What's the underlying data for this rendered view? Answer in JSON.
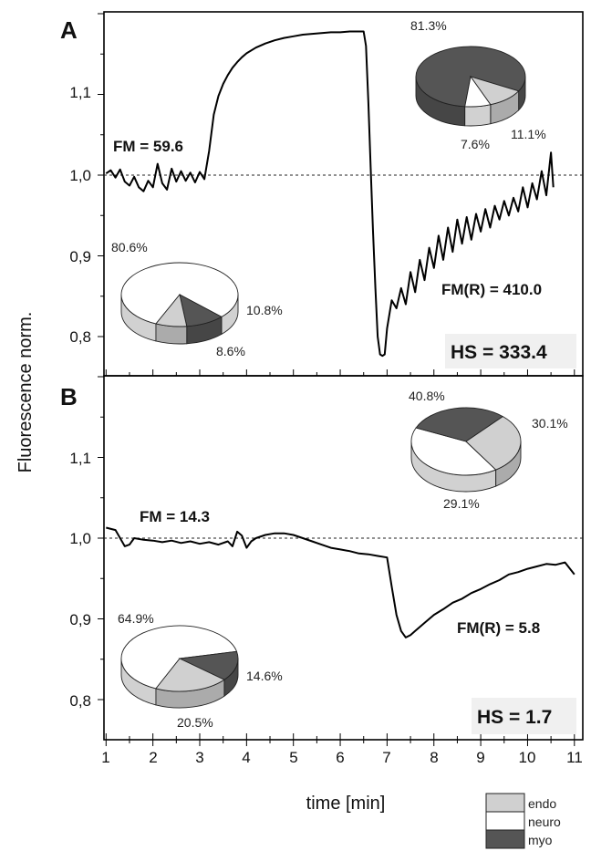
{
  "axes": {
    "ylabel": "Fluorescence norm.",
    "xlabel": "time [min]",
    "x_ticks": [
      "1",
      "2",
      "3",
      "4",
      "5",
      "6",
      "7",
      "8",
      "9",
      "10",
      "11"
    ],
    "y_ticks": [
      "0,8",
      "0,9",
      "1,0",
      "1,1"
    ]
  },
  "legend": {
    "items": [
      {
        "label": "endo",
        "color": "#d0d0d0"
      },
      {
        "label": "neuro",
        "color": "#ffffff"
      },
      {
        "label": "myo",
        "color": "#555555"
      }
    ]
  },
  "panels": [
    {
      "label": "A",
      "fm_label": "FM = 59.6",
      "fmr_label": "FM(R) = 410.0",
      "hs_label": "HS = 333.4",
      "pies": [
        {
          "slices": [
            {
              "name": "myo",
              "value": 81.3,
              "label": "81.3%"
            },
            {
              "name": "endo",
              "value": 11.1,
              "label": "11.1%"
            },
            {
              "name": "neuro",
              "value": 7.6,
              "label": "7.6%"
            }
          ]
        },
        {
          "slices": [
            {
              "name": "neuro",
              "value": 80.6,
              "label": "80.6%"
            },
            {
              "name": "myo",
              "value": 10.8,
              "label": "10.8%"
            },
            {
              "name": "endo",
              "value": 8.6,
              "label": "8.6%"
            }
          ]
        }
      ]
    },
    {
      "label": "B",
      "fm_label": "FM = 14.3",
      "fmr_label": "FM(R) = 5.8",
      "hs_label": "HS = 1.7",
      "pies": [
        {
          "slices": [
            {
              "name": "neuro",
              "value": 40.8,
              "label": "40.8%"
            },
            {
              "name": "myo",
              "value": 30.1,
              "label": "30.1%"
            },
            {
              "name": "endo",
              "value": 29.1,
              "label": "29.1%"
            }
          ]
        },
        {
          "slices": [
            {
              "name": "neuro",
              "value": 64.9,
              "label": "64.9%"
            },
            {
              "name": "myo",
              "value": 14.6,
              "label": "14.6%"
            },
            {
              "name": "endo",
              "value": 20.5,
              "label": "20.5%"
            }
          ]
        }
      ]
    }
  ],
  "chart_data": [
    {
      "type": "line",
      "panel": "A",
      "xlabel": "time [min]",
      "ylabel": "Fluorescence norm.",
      "xlim": [
        1,
        11
      ],
      "ylim": [
        0.75,
        1.2
      ],
      "reference_line": 1.0,
      "series": [
        {
          "x": [
            1.0,
            1.1,
            1.2,
            1.3,
            1.4,
            1.5,
            1.6,
            1.7,
            1.8,
            1.9,
            2.0,
            2.1,
            2.2,
            2.3,
            2.4,
            2.5,
            2.6,
            2.7,
            2.8,
            2.9,
            3.0,
            3.1,
            3.2,
            3.3,
            3.4,
            3.5,
            3.6,
            3.7,
            3.8,
            3.9,
            4.0,
            4.2,
            4.4,
            4.6,
            4.8,
            5.0,
            5.2,
            5.4,
            5.6,
            5.8,
            6.0,
            6.2,
            6.4,
            6.5,
            6.55,
            6.6,
            6.65,
            6.7,
            6.75,
            6.8,
            6.85,
            6.9,
            6.95,
            7.0,
            7.1,
            7.2,
            7.3,
            7.4,
            7.5,
            7.6,
            7.7,
            7.8,
            7.9,
            8.0,
            8.1,
            8.2,
            8.3,
            8.4,
            8.5,
            8.6,
            8.7,
            8.8,
            8.9,
            9.0,
            9.1,
            9.2,
            9.3,
            9.4,
            9.5,
            9.6,
            9.7,
            9.8,
            9.9,
            10.0,
            10.1,
            10.2,
            10.3,
            10.4,
            10.5,
            10.55
          ],
          "y": [
            1.002,
            1.006,
            0.997,
            1.007,
            0.992,
            0.987,
            0.998,
            0.985,
            0.98,
            0.993,
            0.985,
            1.014,
            0.99,
            0.982,
            1.008,
            0.992,
            1.005,
            0.993,
            1.003,
            0.991,
            1.004,
            0.995,
            1.03,
            1.075,
            1.098,
            1.113,
            1.124,
            1.133,
            1.14,
            1.146,
            1.151,
            1.158,
            1.163,
            1.167,
            1.17,
            1.172,
            1.174,
            1.175,
            1.176,
            1.177,
            1.177,
            1.178,
            1.178,
            1.178,
            1.16,
            1.09,
            1.01,
            0.93,
            0.86,
            0.8,
            0.778,
            0.776,
            0.778,
            0.81,
            0.845,
            0.835,
            0.86,
            0.84,
            0.88,
            0.855,
            0.895,
            0.87,
            0.91,
            0.885,
            0.925,
            0.895,
            0.935,
            0.905,
            0.945,
            0.915,
            0.948,
            0.92,
            0.952,
            0.93,
            0.958,
            0.935,
            0.962,
            0.945,
            0.968,
            0.95,
            0.972,
            0.955,
            0.985,
            0.96,
            0.99,
            0.97,
            1.005,
            0.975,
            1.028,
            0.985
          ]
        }
      ]
    },
    {
      "type": "line",
      "panel": "B",
      "xlabel": "time [min]",
      "ylabel": "Fluorescence norm.",
      "xlim": [
        1,
        11
      ],
      "ylim": [
        0.75,
        1.2
      ],
      "reference_line": 1.0,
      "series": [
        {
          "x": [
            1.0,
            1.2,
            1.4,
            1.5,
            1.6,
            1.8,
            2.0,
            2.2,
            2.4,
            2.6,
            2.8,
            3.0,
            3.2,
            3.4,
            3.6,
            3.7,
            3.8,
            3.9,
            4.0,
            4.1,
            4.2,
            4.4,
            4.6,
            4.8,
            5.0,
            5.2,
            5.4,
            5.6,
            5.8,
            6.0,
            6.2,
            6.4,
            6.6,
            6.8,
            7.0,
            7.1,
            7.2,
            7.3,
            7.4,
            7.5,
            7.6,
            7.8,
            8.0,
            8.2,
            8.4,
            8.6,
            8.8,
            9.0,
            9.2,
            9.4,
            9.6,
            9.8,
            10.0,
            10.2,
            10.4,
            10.6,
            10.8,
            11.0
          ],
          "y": [
            1.013,
            1.01,
            0.99,
            0.992,
            1.0,
            0.998,
            0.997,
            0.995,
            0.997,
            0.994,
            0.996,
            0.993,
            0.995,
            0.992,
            0.996,
            0.99,
            1.008,
            1.003,
            0.988,
            0.996,
            1.0,
            1.004,
            1.006,
            1.006,
            1.004,
            1.0,
            0.996,
            0.992,
            0.988,
            0.986,
            0.984,
            0.981,
            0.98,
            0.978,
            0.976,
            0.94,
            0.905,
            0.885,
            0.877,
            0.88,
            0.885,
            0.895,
            0.905,
            0.912,
            0.92,
            0.925,
            0.932,
            0.937,
            0.943,
            0.948,
            0.955,
            0.958,
            0.962,
            0.965,
            0.968,
            0.967,
            0.97,
            0.955
          ]
        }
      ]
    }
  ]
}
